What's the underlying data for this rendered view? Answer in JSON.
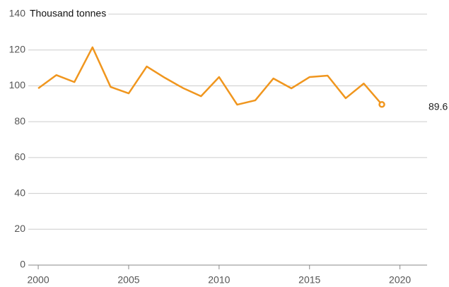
{
  "chart_data": {
    "type": "line",
    "y_label": "Thousand tonnes",
    "x": [
      2000,
      2001,
      2002,
      2003,
      2004,
      2005,
      2006,
      2007,
      2008,
      2009,
      2010,
      2011,
      2012,
      2013,
      2014,
      2015,
      2016,
      2017,
      2018,
      2019
    ],
    "series": [
      {
        "name": "Thousand tonnes",
        "color": "#f0961e",
        "values": [
          98.6,
          106,
          102.1,
          121.5,
          99.4,
          95.8,
          110.8,
          104.5,
          98.8,
          94.2,
          104.9,
          89.5,
          91.9,
          104.1,
          98.6,
          104.9,
          105.7,
          93.1,
          101.3,
          89.6
        ]
      }
    ],
    "xlim": [
      1999.45,
      2021.5
    ],
    "xticks": [
      2000,
      2005,
      2010,
      2015,
      2020
    ],
    "ylim": [
      0,
      140
    ],
    "yticks": [
      0,
      20,
      40,
      60,
      80,
      100,
      120,
      140
    ],
    "grid": true
  }
}
